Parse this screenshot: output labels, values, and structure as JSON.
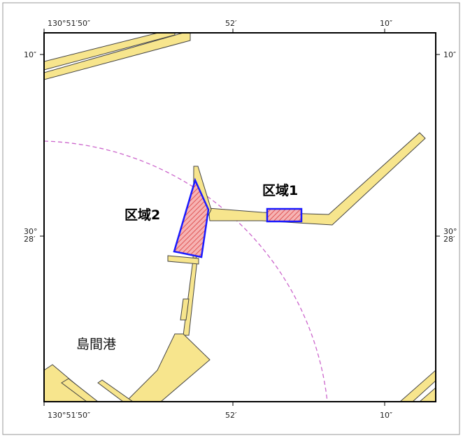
{
  "map": {
    "top_lon_labels": [
      "130°51′50″",
      "52′",
      "10″"
    ],
    "bottom_lon_labels": [
      "130°51′50″",
      "52′",
      "10″"
    ],
    "left_lat_labels": {
      "top": "10″",
      "middle_line1": "30°",
      "middle_line2": "28′"
    },
    "right_lat_labels": {
      "top": "10″",
      "middle_line1": "30°",
      "middle_line2": "28′"
    },
    "area1_label": "区域1",
    "area2_label": "区域2",
    "port_label": "島間港",
    "colors": {
      "land": "#f7e58d",
      "land_outline": "#444444",
      "area_fill": "#f4a0a0",
      "area_hatch": "#e05a5a",
      "area_border": "#1a1aff",
      "range_circle": "#cc55cc",
      "frame": "#000000",
      "outer_border": "#888888"
    }
  }
}
